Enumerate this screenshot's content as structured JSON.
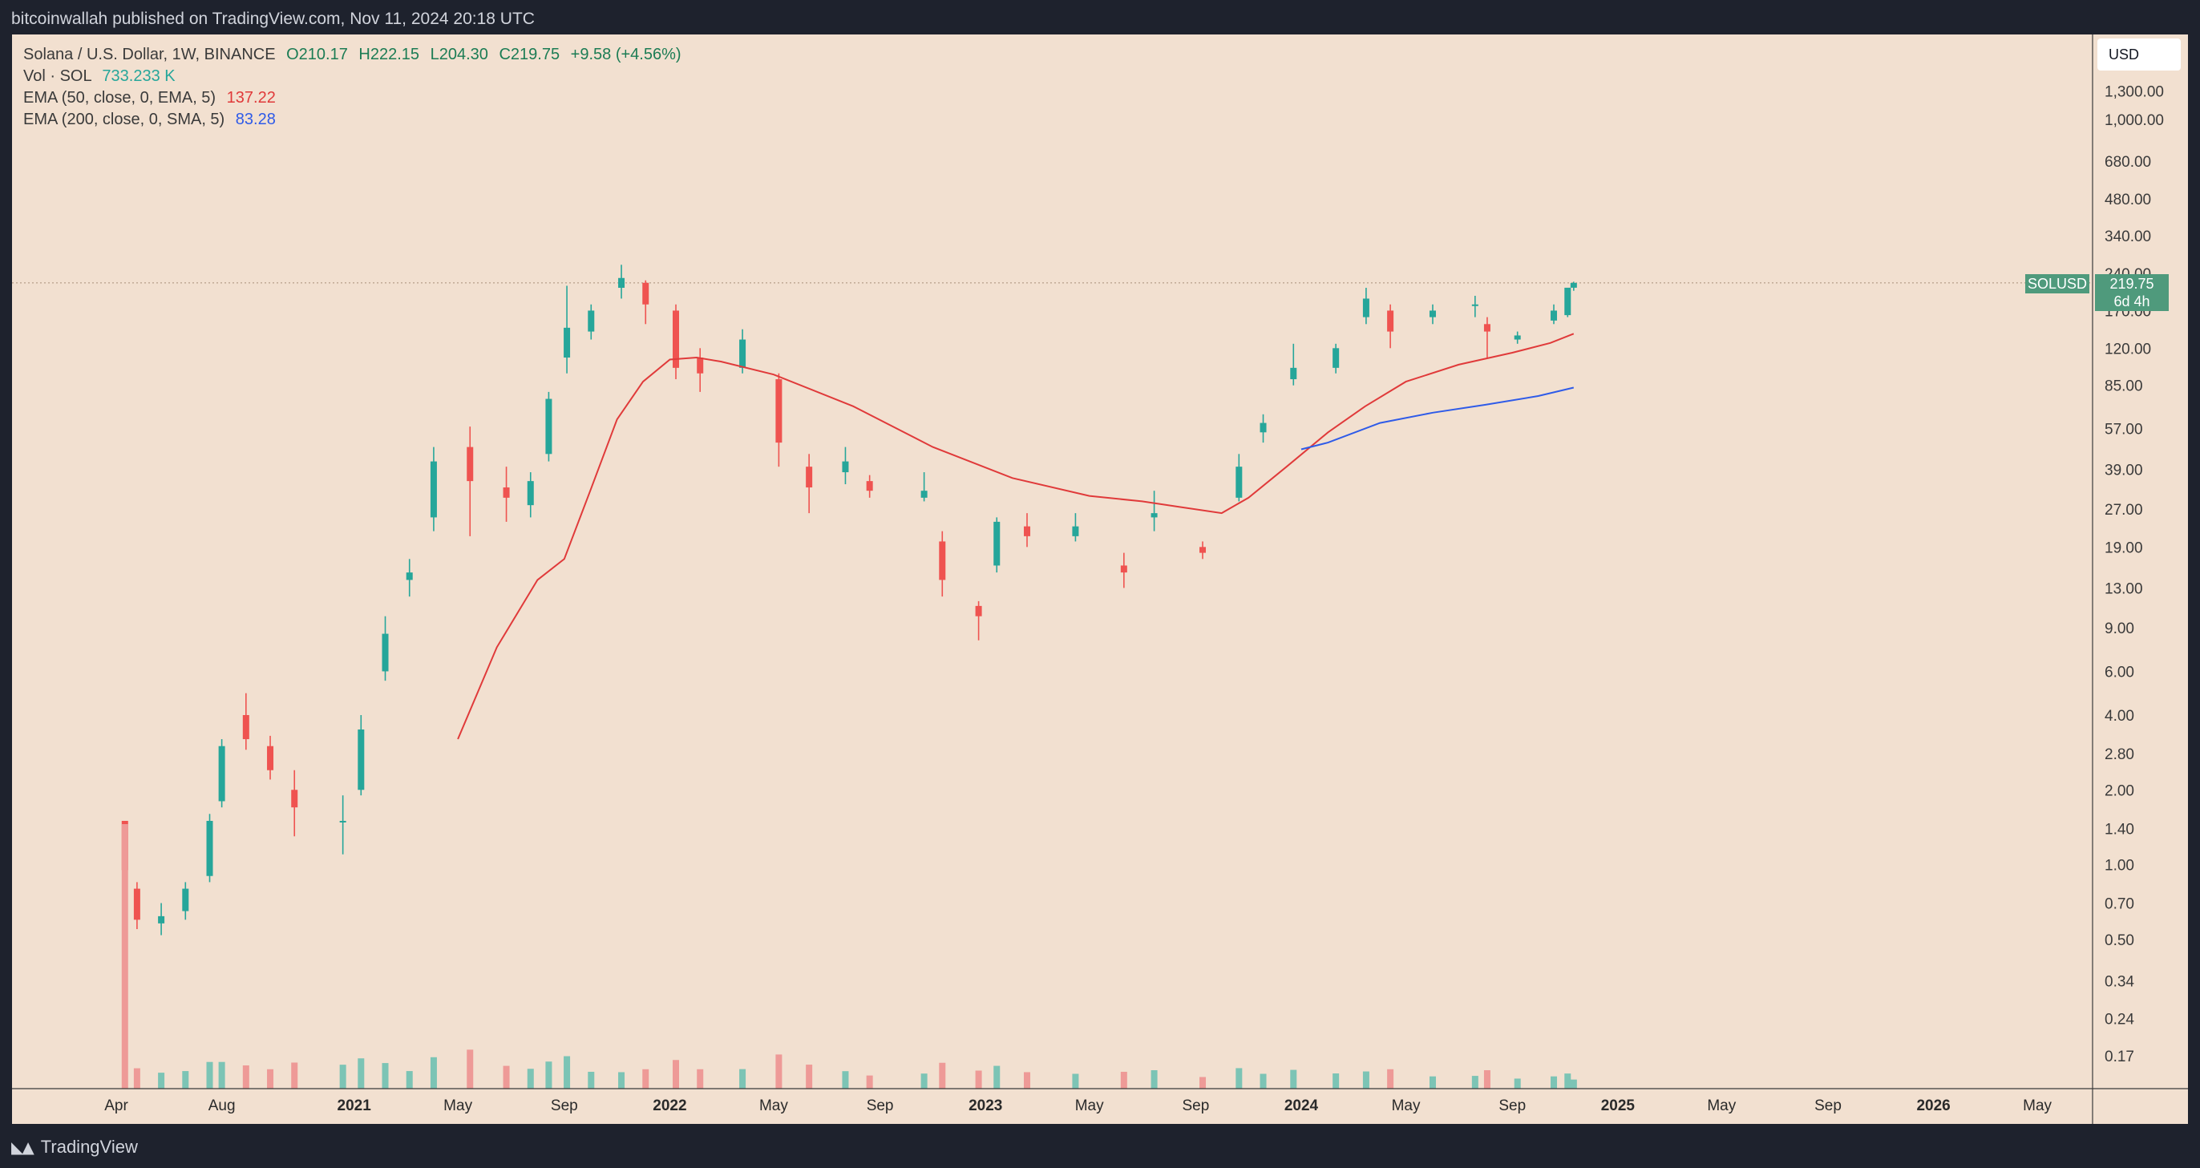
{
  "topbar": {
    "title": "bitcoinwallah published on TradingView.com, Nov 11, 2024 20:18 UTC"
  },
  "legend": {
    "symbol": "Solana / U.S. Dollar, 1W, BINANCE",
    "open": "O210.17",
    "high": "H222.15",
    "low": "L204.30",
    "close": "C219.75",
    "change": "+9.58 (+4.56%)",
    "vol_label": "Vol · SOL",
    "vol_value": "733.233 K",
    "ema50_label": "EMA (50, close, 0, EMA, 5)",
    "ema50_value": "137.22",
    "ema200_label": "EMA (200, close, 0, SMA, 5)",
    "ema200_value": "83.28"
  },
  "currency_button": "USD",
  "price_tag": {
    "symbol": "SOLUSD",
    "price": "219.75",
    "countdown": "6d 4h"
  },
  "footer": {
    "brand": "TradingView"
  },
  "colors": {
    "background": "#f2e0d0",
    "frame": "#1e222d",
    "up": "#26a69a",
    "down": "#ef5350",
    "ema50": "#e03a3a",
    "ema200": "#2f5be8",
    "tag": "#4f9a7c"
  },
  "chart_data": {
    "type": "candlestick",
    "title": "Solana / U.S. Dollar, 1W, BINANCE",
    "y_scale": "log",
    "y_ticks": [
      "0.17",
      "0.24",
      "0.34",
      "0.50",
      "0.70",
      "1.00",
      "1.40",
      "2.00",
      "2.80",
      "4.00",
      "6.00",
      "9.00",
      "13.00",
      "19.00",
      "27.00",
      "39.00",
      "57.00",
      "85.00",
      "120.00",
      "170.00",
      "240.00",
      "340.00",
      "480.00",
      "680.00",
      "1,000.00",
      "1,300.00"
    ],
    "x_ticks": [
      "Apr",
      "Aug",
      "2021",
      "May",
      "Sep",
      "2022",
      "May",
      "Sep",
      "2023",
      "May",
      "Sep",
      "2024",
      "May",
      "Sep",
      "2025",
      "May",
      "Sep",
      "2026",
      "May"
    ],
    "bold_x_ticks": [
      "2021",
      "2022",
      "2023",
      "2024",
      "2025",
      "2026"
    ],
    "current_price": 219.75,
    "candles_approx_weekly_close": [
      {
        "date": "2020-04-11",
        "o": 1.5,
        "h": 1.5,
        "l": 0.55,
        "c": 0.95
      },
      {
        "date": "2020-04-25",
        "o": 0.8,
        "h": 0.85,
        "l": 0.55,
        "c": 0.6
      },
      {
        "date": "2020-05-23",
        "o": 0.58,
        "h": 0.7,
        "l": 0.52,
        "c": 0.62
      },
      {
        "date": "2020-06-20",
        "o": 0.65,
        "h": 0.85,
        "l": 0.6,
        "c": 0.8
      },
      {
        "date": "2020-07-18",
        "o": 0.9,
        "h": 1.6,
        "l": 0.85,
        "c": 1.5
      },
      {
        "date": "2020-08-01",
        "o": 1.8,
        "h": 3.2,
        "l": 1.7,
        "c": 3.0
      },
      {
        "date": "2020-08-29",
        "o": 4.0,
        "h": 4.9,
        "l": 2.9,
        "c": 3.2
      },
      {
        "date": "2020-09-26",
        "o": 3.0,
        "h": 3.3,
        "l": 2.2,
        "c": 2.4
      },
      {
        "date": "2020-10-24",
        "o": 2.0,
        "h": 2.4,
        "l": 1.3,
        "c": 1.7
      },
      {
        "date": "2020-12-19",
        "o": 1.5,
        "h": 1.9,
        "l": 1.1,
        "c": 1.5
      },
      {
        "date": "2021-01-09",
        "o": 2.0,
        "h": 4.0,
        "l": 1.9,
        "c": 3.5
      },
      {
        "date": "2021-02-06",
        "o": 6.0,
        "h": 10.0,
        "l": 5.5,
        "c": 8.5
      },
      {
        "date": "2021-03-06",
        "o": 14.0,
        "h": 17.0,
        "l": 12.0,
        "c": 15.0
      },
      {
        "date": "2021-04-03",
        "o": 25.0,
        "h": 48.0,
        "l": 22.0,
        "c": 42.0
      },
      {
        "date": "2021-05-15",
        "o": 48.0,
        "h": 58.0,
        "l": 21.0,
        "c": 35.0
      },
      {
        "date": "2021-06-26",
        "o": 33.0,
        "h": 40.0,
        "l": 24.0,
        "c": 30.0
      },
      {
        "date": "2021-07-24",
        "o": 28.0,
        "h": 38.0,
        "l": 25.0,
        "c": 35.0
      },
      {
        "date": "2021-08-14",
        "o": 45.0,
        "h": 80.0,
        "l": 42.0,
        "c": 75.0
      },
      {
        "date": "2021-09-04",
        "o": 110.0,
        "h": 214.0,
        "l": 95.0,
        "c": 145.0
      },
      {
        "date": "2021-10-02",
        "o": 140.0,
        "h": 180.0,
        "l": 130.0,
        "c": 170.0
      },
      {
        "date": "2021-11-06",
        "o": 210.0,
        "h": 260.0,
        "l": 190.0,
        "c": 230.0
      },
      {
        "date": "2021-12-04",
        "o": 220.0,
        "h": 225.0,
        "l": 150.0,
        "c": 180.0
      },
      {
        "date": "2022-01-08",
        "o": 170.0,
        "h": 180.0,
        "l": 90.0,
        "c": 100.0
      },
      {
        "date": "2022-02-05",
        "o": 110.0,
        "h": 120.0,
        "l": 80.0,
        "c": 95.0
      },
      {
        "date": "2022-03-26",
        "o": 100.0,
        "h": 143.0,
        "l": 95.0,
        "c": 130.0
      },
      {
        "date": "2022-05-07",
        "o": 90.0,
        "h": 95.0,
        "l": 40.0,
        "c": 50.0
      },
      {
        "date": "2022-06-11",
        "o": 40.0,
        "h": 45.0,
        "l": 26.0,
        "c": 33.0
      },
      {
        "date": "2022-07-23",
        "o": 38.0,
        "h": 48.0,
        "l": 34.0,
        "c": 42.0
      },
      {
        "date": "2022-08-20",
        "o": 35.0,
        "h": 37.0,
        "l": 30.0,
        "c": 32.0
      },
      {
        "date": "2022-10-22",
        "o": 30.0,
        "h": 38.0,
        "l": 29.0,
        "c": 32.0
      },
      {
        "date": "2022-11-12",
        "o": 20.0,
        "h": 22.0,
        "l": 12.0,
        "c": 14.0
      },
      {
        "date": "2022-12-24",
        "o": 11.0,
        "h": 11.5,
        "l": 8.0,
        "c": 10.0
      },
      {
        "date": "2023-01-14",
        "o": 16.0,
        "h": 25.0,
        "l": 15.0,
        "c": 24.0
      },
      {
        "date": "2023-02-18",
        "o": 23.0,
        "h": 26.0,
        "l": 19.0,
        "c": 21.0
      },
      {
        "date": "2023-04-15",
        "o": 21.0,
        "h": 26.0,
        "l": 20.0,
        "c": 23.0
      },
      {
        "date": "2023-06-10",
        "o": 16.0,
        "h": 18.0,
        "l": 13.0,
        "c": 15.0
      },
      {
        "date": "2023-07-15",
        "o": 25.0,
        "h": 32.0,
        "l": 22.0,
        "c": 26.0
      },
      {
        "date": "2023-09-09",
        "o": 19.0,
        "h": 20.0,
        "l": 17.0,
        "c": 18.0
      },
      {
        "date": "2023-10-21",
        "o": 30.0,
        "h": 45.0,
        "l": 29.0,
        "c": 40.0
      },
      {
        "date": "2023-11-18",
        "o": 55.0,
        "h": 65.0,
        "l": 50.0,
        "c": 60.0
      },
      {
        "date": "2023-12-23",
        "o": 90.0,
        "h": 125.0,
        "l": 85.0,
        "c": 100.0
      },
      {
        "date": "2024-02-10",
        "o": 100.0,
        "h": 125.0,
        "l": 95.0,
        "c": 120.0
      },
      {
        "date": "2024-03-16",
        "o": 160.0,
        "h": 210.0,
        "l": 150.0,
        "c": 190.0
      },
      {
        "date": "2024-04-13",
        "o": 170.0,
        "h": 180.0,
        "l": 120.0,
        "c": 140.0
      },
      {
        "date": "2024-06-01",
        "o": 160.0,
        "h": 180.0,
        "l": 150.0,
        "c": 170.0
      },
      {
        "date": "2024-07-20",
        "o": 180.0,
        "h": 195.0,
        "l": 160.0,
        "c": 180.0
      },
      {
        "date": "2024-08-03",
        "o": 150.0,
        "h": 160.0,
        "l": 110.0,
        "c": 140.0
      },
      {
        "date": "2024-09-07",
        "o": 130.0,
        "h": 140.0,
        "l": 125.0,
        "c": 135.0
      },
      {
        "date": "2024-10-19",
        "o": 155.0,
        "h": 180.0,
        "l": 150.0,
        "c": 170.0
      },
      {
        "date": "2024-11-04",
        "o": 163.0,
        "h": 210.0,
        "l": 160.0,
        "c": 210.17
      },
      {
        "date": "2024-11-11",
        "o": 210.17,
        "h": 222.15,
        "l": 204.3,
        "c": 219.75
      }
    ],
    "ema50": [
      {
        "date": "2021-05-01",
        "v": 3.2
      },
      {
        "date": "2021-06-15",
        "v": 7.5
      },
      {
        "date": "2021-08-01",
        "v": 14.0
      },
      {
        "date": "2021-09-01",
        "v": 17.0
      },
      {
        "date": "2021-10-01",
        "v": 32.0
      },
      {
        "date": "2021-11-01",
        "v": 62.0
      },
      {
        "date": "2021-12-01",
        "v": 88.0
      },
      {
        "date": "2022-01-01",
        "v": 108.0
      },
      {
        "date": "2022-02-01",
        "v": 110.0
      },
      {
        "date": "2022-03-01",
        "v": 106.0
      },
      {
        "date": "2022-05-01",
        "v": 94.0
      },
      {
        "date": "2022-08-01",
        "v": 70.0
      },
      {
        "date": "2022-11-01",
        "v": 48.0
      },
      {
        "date": "2023-02-01",
        "v": 36.0
      },
      {
        "date": "2023-05-01",
        "v": 30.5
      },
      {
        "date": "2023-07-01",
        "v": 29.0
      },
      {
        "date": "2023-08-15",
        "v": 27.5
      },
      {
        "date": "2023-10-01",
        "v": 26.0
      },
      {
        "date": "2023-11-01",
        "v": 30.0
      },
      {
        "date": "2023-12-15",
        "v": 40.0
      },
      {
        "date": "2024-02-01",
        "v": 55.0
      },
      {
        "date": "2024-03-15",
        "v": 70.0
      },
      {
        "date": "2024-05-01",
        "v": 88.0
      },
      {
        "date": "2024-07-01",
        "v": 103.0
      },
      {
        "date": "2024-09-01",
        "v": 115.0
      },
      {
        "date": "2024-10-15",
        "v": 126.0
      },
      {
        "date": "2024-11-11",
        "v": 137.22
      }
    ],
    "ema200": [
      {
        "date": "2024-01-01",
        "v": 47.0
      },
      {
        "date": "2024-02-01",
        "v": 50.0
      },
      {
        "date": "2024-04-01",
        "v": 60.0
      },
      {
        "date": "2024-06-01",
        "v": 66.0
      },
      {
        "date": "2024-08-01",
        "v": 71.0
      },
      {
        "date": "2024-10-01",
        "v": 77.0
      },
      {
        "date": "2024-11-11",
        "v": 83.28
      }
    ],
    "volume_notes": "Volume histogram along bottom; tallest spike at first week (Apr 2020)"
  }
}
